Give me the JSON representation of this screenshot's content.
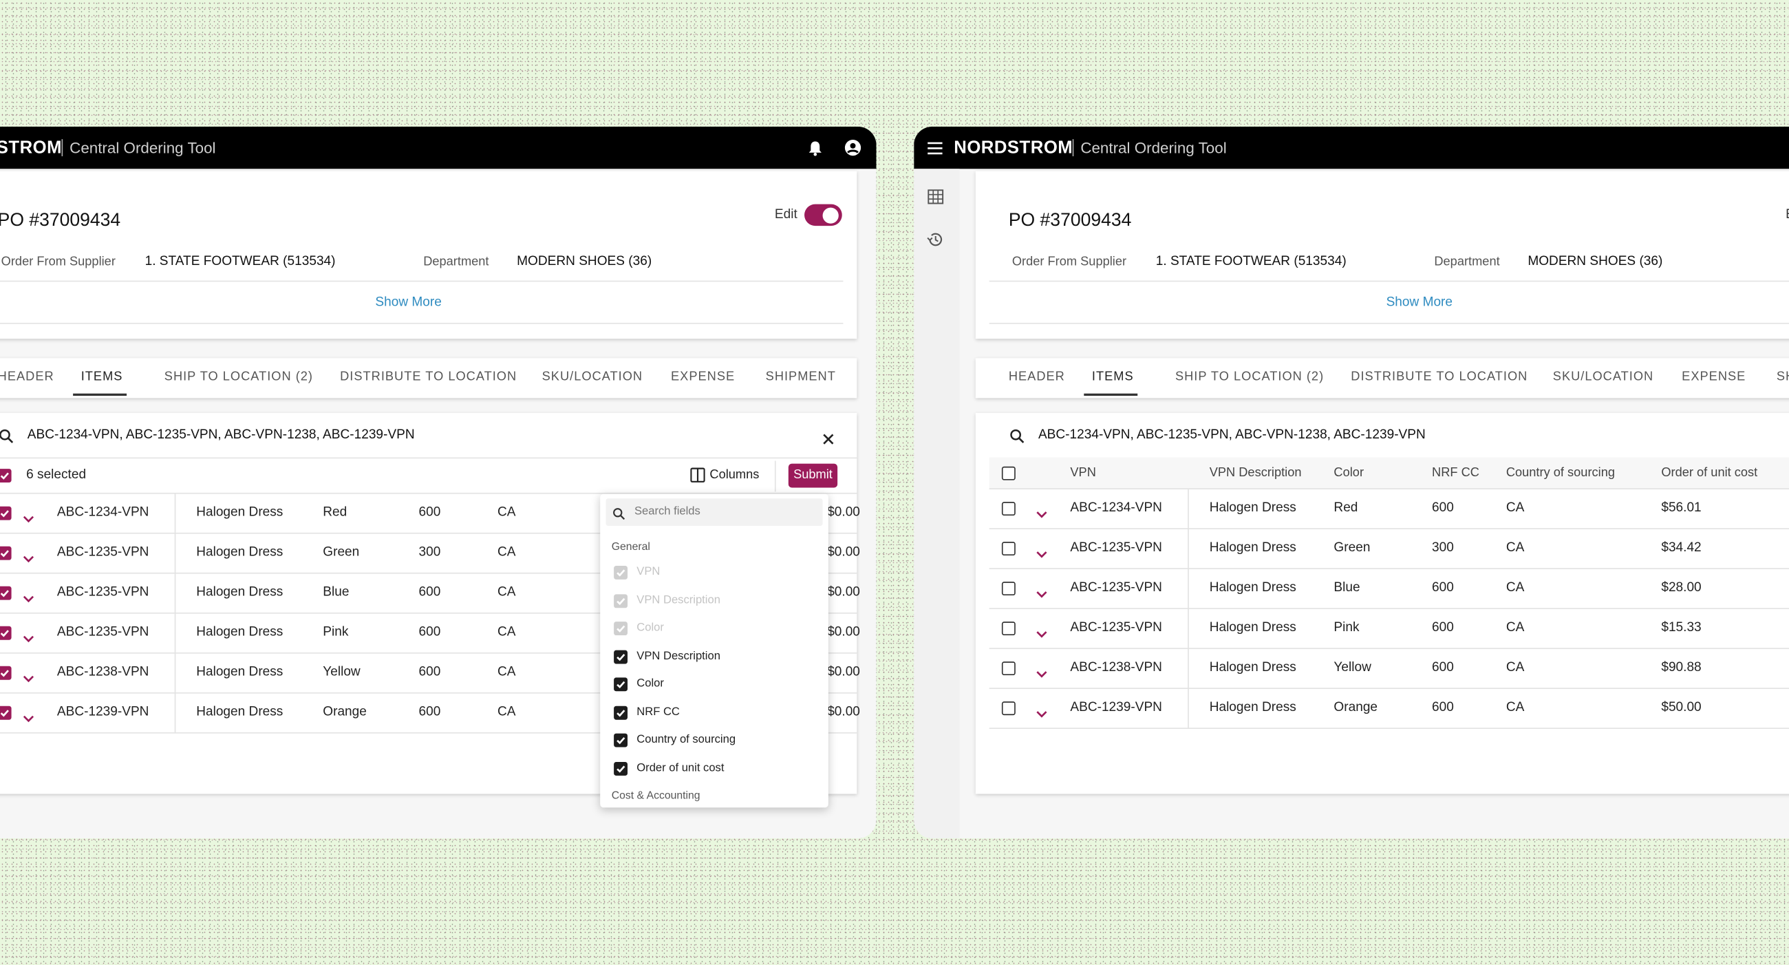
{
  "brand": "NORDSTROM",
  "app_name": "Central Ordering Tool",
  "po_title": "PO #37009434",
  "edit_label": "Edit",
  "fields": [
    {
      "label": "Order From Supplier",
      "value": "1. STATE FOOTWEAR (513534)"
    },
    {
      "label": "Department",
      "value": "MODERN SHOES (36)"
    }
  ],
  "show_more": "Show More",
  "tabs": [
    "HEADER",
    "ITEMS",
    "SHIP TO LOCATION (2)",
    "DISTRIBUTE TO LOCATION",
    "SKU/LOCATION",
    "EXPENSE",
    "SHIPMENT"
  ],
  "active_tab": "ITEMS",
  "search_query": "ABC-1234-VPN, ABC-1235-VPN, ABC-VPN-1238, ABC-1239-VPN",
  "left_screen": {
    "selected_count": "6 selected",
    "columns_button": "Columns",
    "submit_button": "Submit",
    "rows": [
      [
        "ABC-1234-VPN",
        "Halogen Dress",
        "Red",
        "600",
        "CA",
        "$0.00"
      ],
      [
        "ABC-1235-VPN",
        "Halogen Dress",
        "Green",
        "300",
        "CA",
        "$0.00"
      ],
      [
        "ABC-1235-VPN",
        "Halogen Dress",
        "Blue",
        "600",
        "CA",
        "$0.00"
      ],
      [
        "ABC-1235-VPN",
        "Halogen Dress",
        "Pink",
        "600",
        "CA",
        "$0.00"
      ],
      [
        "ABC-1238-VPN",
        "Halogen Dress",
        "Yellow",
        "600",
        "CA",
        "$0.00"
      ],
      [
        "ABC-1239-VPN",
        "Halogen Dress",
        "Orange",
        "600",
        "CA",
        "$0.00"
      ]
    ],
    "columns_menu": {
      "search_placeholder": "Search fields",
      "groups": [
        {
          "name": "General",
          "items": [
            {
              "label": "VPN",
              "checked": true,
              "disabled": true
            },
            {
              "label": "VPN Description",
              "checked": true,
              "disabled": true
            },
            {
              "label": "Color",
              "checked": true,
              "disabled": true
            },
            {
              "label": "VPN Description",
              "checked": true,
              "disabled": false
            },
            {
              "label": "Color",
              "checked": true,
              "disabled": false
            },
            {
              "label": "NRF CC",
              "checked": true,
              "disabled": false
            },
            {
              "label": "Country of sourcing",
              "checked": true,
              "disabled": false
            },
            {
              "label": "Order of unit cost",
              "checked": true,
              "disabled": false
            }
          ]
        },
        {
          "name": "Cost & Accounting",
          "items": []
        }
      ]
    }
  },
  "right_screen": {
    "columns": [
      "VPN",
      "VPN Description",
      "Color",
      "NRF CC",
      "Country of sourcing",
      "Order of unit cost"
    ],
    "rows": [
      [
        "ABC-1234-VPN",
        "Halogen Dress",
        "Red",
        "600",
        "CA",
        "$56.01"
      ],
      [
        "ABC-1235-VPN",
        "Halogen Dress",
        "Green",
        "300",
        "CA",
        "$34.42"
      ],
      [
        "ABC-1235-VPN",
        "Halogen Dress",
        "Blue",
        "600",
        "CA",
        "$28.00"
      ],
      [
        "ABC-1235-VPN",
        "Halogen Dress",
        "Pink",
        "600",
        "CA",
        "$15.33"
      ],
      [
        "ABC-1238-VPN",
        "Halogen Dress",
        "Yellow",
        "600",
        "CA",
        "$90.88"
      ],
      [
        "ABC-1239-VPN",
        "Halogen Dress",
        "Orange",
        "600",
        "CA",
        "$50.00"
      ]
    ]
  }
}
